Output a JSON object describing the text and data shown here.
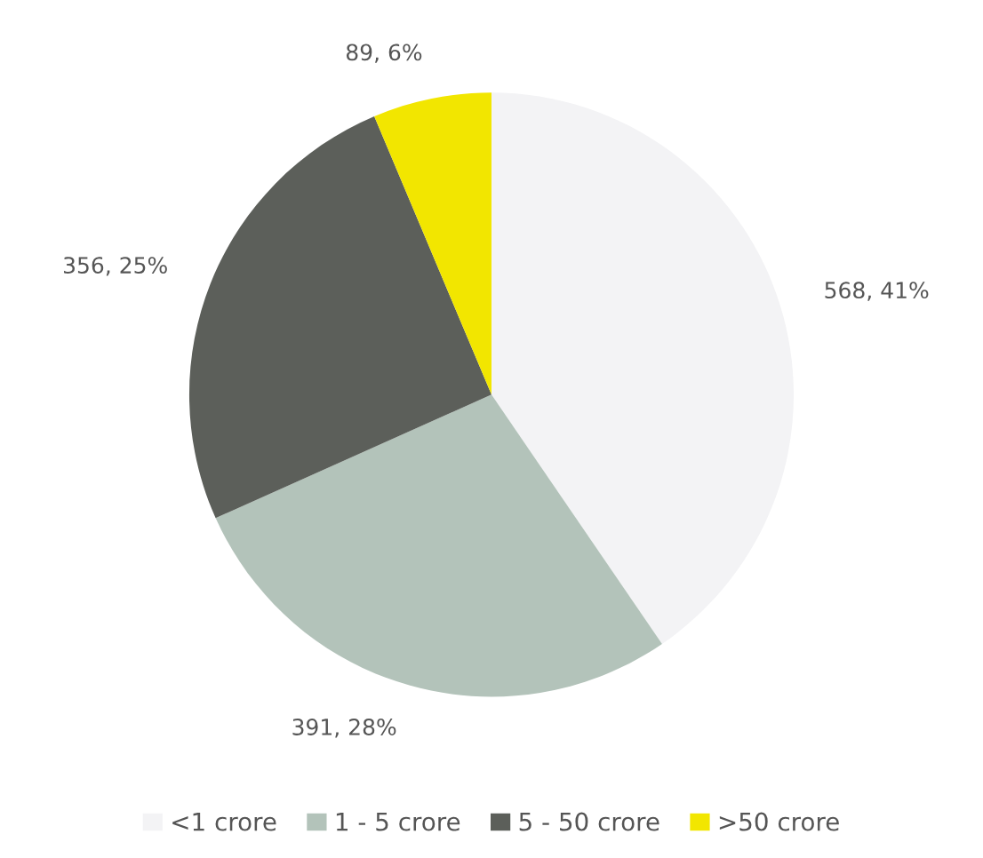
{
  "chart_data": {
    "type": "pie",
    "categories": [
      "<1 crore",
      "1 - 5 crore",
      "5 - 50 crore",
      ">50 crore"
    ],
    "values": [
      568,
      391,
      356,
      89
    ],
    "value_labels": [
      "568, 41%",
      "391, 28%",
      "356, 25%",
      "89, 6%"
    ],
    "colors": [
      "#f3f3f5",
      "#b3c3ba",
      "#5c5f5a",
      "#f2e600"
    ],
    "legend": "bottom"
  }
}
